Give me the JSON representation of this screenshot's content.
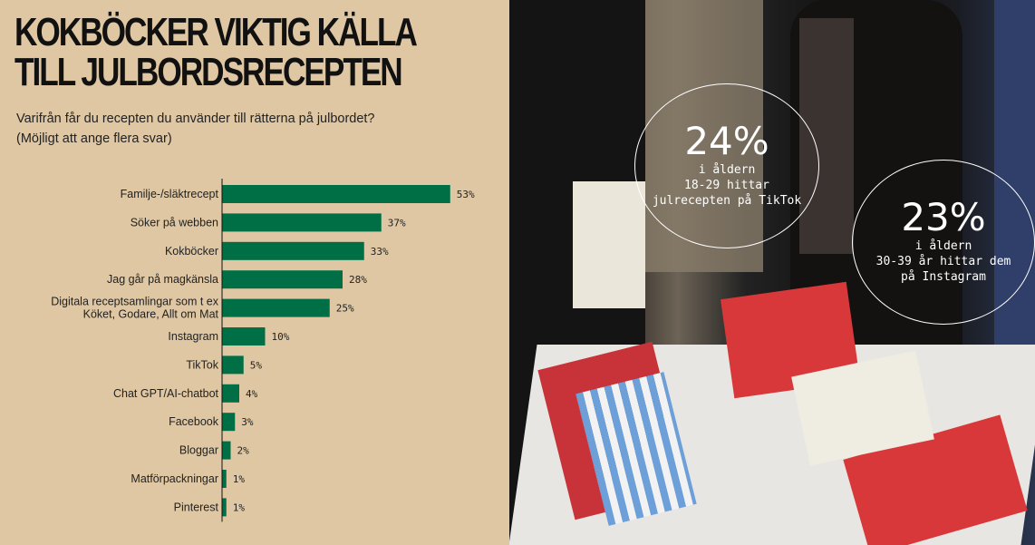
{
  "header": {
    "title": "KOKBÖCKER VIKTIG KÄLLA\nTILL JULBORDSRECEPTEN",
    "question": "Varifrån får du recepten du använder till rätterna på julbordet?",
    "note": "(Möjligt att ange flera svar)"
  },
  "chart_data": {
    "type": "bar",
    "orientation": "horizontal",
    "categories": [
      "Familje-/släktrecept",
      "Söker på webben",
      "Kokböcker",
      "Jag går på magkänsla",
      "Digitala receptsamlingar som t ex\nKöket, Godare, Allt om Mat",
      "Instagram",
      "TikTok",
      "Chat GPT/AI-chatbot",
      "Facebook",
      "Bloggar",
      "Matförpackningar",
      "Pinterest"
    ],
    "values": [
      53,
      37,
      33,
      28,
      25,
      10,
      5,
      4,
      3,
      2,
      1,
      1
    ],
    "value_labels": [
      "53%",
      "37%",
      "33%",
      "28%",
      "25%",
      "10%",
      "5%",
      "4%",
      "3%",
      "2%",
      "1%",
      "1%"
    ],
    "unit": "%",
    "bar_color": "#006f45",
    "grid": false
  },
  "callouts": [
    {
      "value": "24%",
      "lines": [
        "i åldern",
        "18-29 hittar",
        "julrecepten på TikTok"
      ]
    },
    {
      "value": "23%",
      "lines": [
        "i åldern",
        "30-39 år hittar dem",
        "på Instagram"
      ]
    }
  ]
}
